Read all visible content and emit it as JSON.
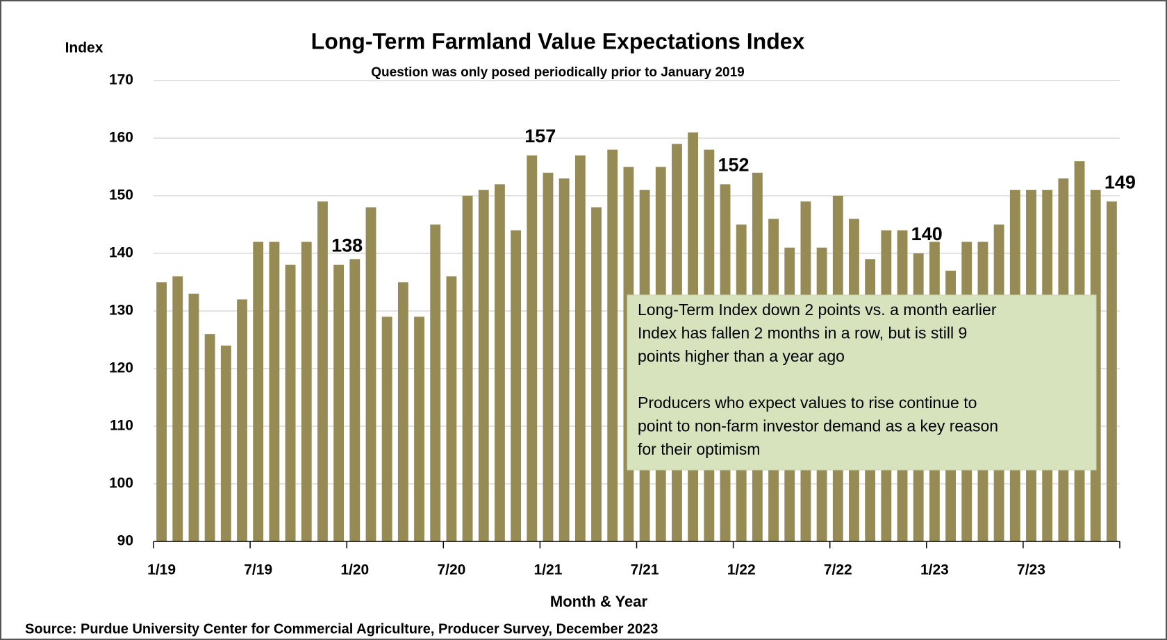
{
  "chart_data": {
    "type": "bar",
    "title": "Long-Term Farmland Value Expectations Index",
    "subtitle": "Question was only posed periodically prior to January 2019",
    "y_label": "Index",
    "x_label": "Month & Year",
    "source": "Source: Purdue University Center for Commercial Agriculture, Producer Survey, December 2023",
    "categories": [
      "1/19",
      null,
      null,
      null,
      null,
      null,
      "7/19",
      null,
      null,
      null,
      null,
      null,
      "1/20",
      null,
      null,
      null,
      null,
      null,
      "7/20",
      null,
      null,
      null,
      null,
      null,
      "1/21",
      null,
      null,
      null,
      null,
      null,
      "7/21",
      null,
      null,
      null,
      null,
      null,
      "1/22",
      null,
      null,
      null,
      null,
      null,
      "7/22",
      null,
      null,
      null,
      null,
      null,
      "1/23",
      null,
      null,
      null,
      null,
      null,
      "7/23",
      null,
      null,
      null,
      null,
      null
    ],
    "values": [
      135,
      136,
      133,
      126,
      124,
      132,
      142,
      142,
      138,
      142,
      149,
      138,
      139,
      148,
      129,
      135,
      129,
      145,
      136,
      150,
      151,
      152,
      144,
      157,
      154,
      153,
      157,
      148,
      158,
      155,
      151,
      155,
      159,
      161,
      158,
      152,
      145,
      154,
      146,
      141,
      149,
      141,
      150,
      146,
      139,
      144,
      144,
      140,
      142,
      137,
      142,
      142,
      145,
      151,
      151,
      151,
      153,
      156,
      151,
      149
    ],
    "value_labels": [
      null,
      null,
      null,
      null,
      null,
      null,
      null,
      null,
      null,
      null,
      null,
      "138",
      null,
      null,
      null,
      null,
      null,
      null,
      null,
      null,
      null,
      null,
      null,
      "157",
      null,
      null,
      null,
      null,
      null,
      null,
      null,
      null,
      null,
      null,
      null,
      "152",
      null,
      null,
      null,
      null,
      null,
      null,
      null,
      null,
      null,
      null,
      null,
      "140",
      null,
      null,
      null,
      null,
      null,
      null,
      null,
      null,
      null,
      null,
      null,
      "149"
    ],
    "color": "#968a55",
    "ylim": [
      90,
      170
    ],
    "yticks": [
      90,
      100,
      110,
      120,
      130,
      140,
      150,
      160,
      170
    ],
    "grid": true,
    "annotation": {
      "paragraphs": [
        [
          "Long-Term Index down 2 points  vs. a month earlier",
          "Index has fallen 2 months in a row, but is still 9",
          "points higher than a year ago"
        ],
        [
          "Producers who expect values to rise continue to",
          "point to non-farm investor demand as a key reason",
          "for their optimism"
        ]
      ]
    }
  }
}
